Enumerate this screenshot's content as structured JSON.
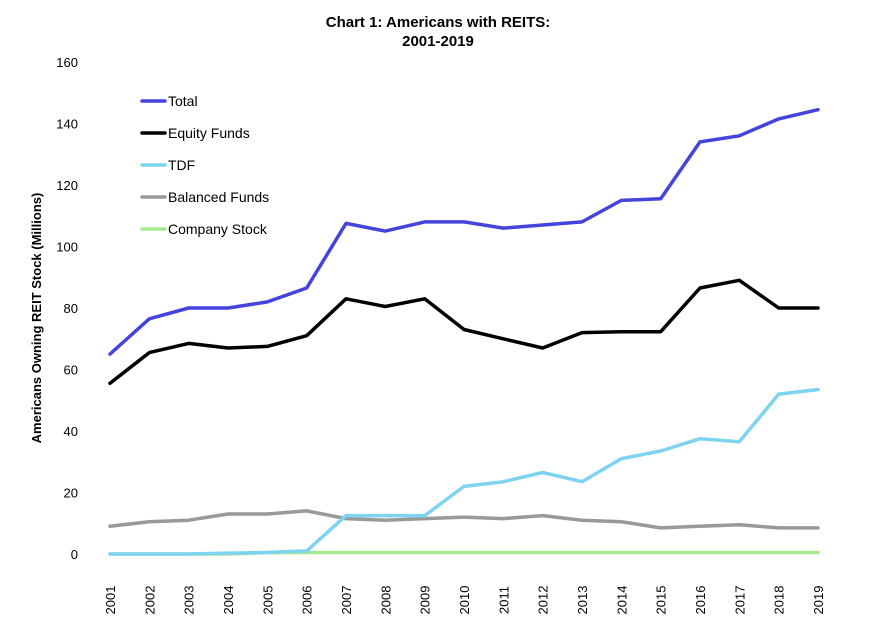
{
  "chart_data": {
    "type": "line",
    "title_line1": "Chart 1: Americans with REITS:",
    "title_line2": "2001-2019",
    "xlabel": "",
    "ylabel": "Americans Owning REIT Stock (Millions)",
    "ylim": [
      0,
      160
    ],
    "yticks": [
      0,
      20,
      40,
      60,
      80,
      100,
      120,
      140,
      160
    ],
    "grid": false,
    "legend_position": "top-left",
    "x": [
      "2001",
      "2002",
      "2003",
      "2004",
      "2005",
      "2006",
      "2007",
      "2008",
      "2009",
      "2010",
      "2011",
      "2012",
      "2013",
      "2014",
      "2015",
      "2016",
      "2017",
      "2018",
      "2019"
    ],
    "series": [
      {
        "name": "Total",
        "color": "#4444dd",
        "values": [
          65,
          76.5,
          80,
          80,
          82,
          86.5,
          107.5,
          105,
          108,
          108,
          106,
          107,
          108,
          115,
          115.5,
          134,
          136,
          141.5,
          144.5
        ]
      },
      {
        "name": "Equity Funds",
        "color": "#000000",
        "values": [
          55.5,
          65.5,
          68.5,
          67,
          67.5,
          71,
          83,
          80.5,
          83,
          73,
          70,
          67,
          72,
          72.3,
          72.3,
          86.5,
          89,
          80,
          80
        ]
      },
      {
        "name": "TDF",
        "color": "#7dd3f0",
        "values": [
          0,
          0,
          0,
          0.3,
          0.5,
          1,
          12.5,
          12.5,
          12.5,
          22,
          23.5,
          26.5,
          23.5,
          31,
          33.5,
          37.5,
          36.5,
          52,
          53.5
        ]
      },
      {
        "name": "Balanced Funds",
        "color": "#999999",
        "values": [
          9,
          10.5,
          11,
          13,
          13,
          14,
          11.5,
          11,
          11.5,
          12,
          11.5,
          12.5,
          11,
          10.5,
          8.5,
          9,
          9.5,
          8.5,
          8.5
        ]
      },
      {
        "name": "Company Stock",
        "color": "#a6e88f",
        "values": [
          0,
          0,
          0,
          0,
          0.5,
          0.5,
          0.5,
          0.5,
          0.5,
          0.5,
          0.5,
          0.5,
          0.5,
          0.5,
          0.5,
          0.5,
          0.5,
          0.5,
          0.5
        ]
      }
    ]
  }
}
